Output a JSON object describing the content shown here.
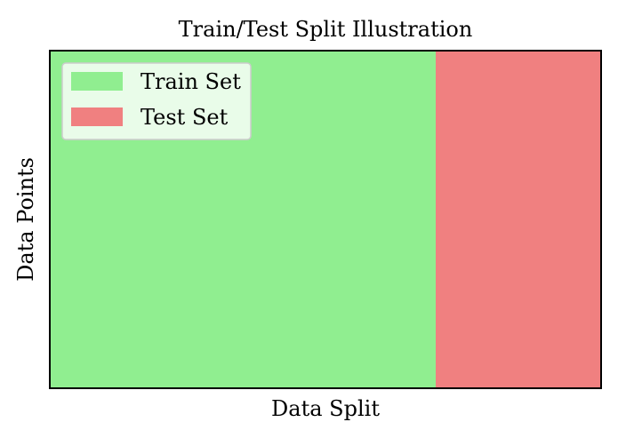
{
  "chart_data": {
    "type": "bar",
    "orientation": "horizontal-stacked",
    "title": "Train/Test Split Illustration",
    "xlabel": "Data Split",
    "ylabel": "Data Points",
    "xlim": [
      0,
      1
    ],
    "ticks_visible": false,
    "grid": false,
    "legend_position": "top-left",
    "series": [
      {
        "name": "Train Set",
        "start": 0,
        "value": 0.7,
        "color": "#90EE90"
      },
      {
        "name": "Test Set",
        "start": 0.7,
        "value": 0.3,
        "color": "#F08080"
      }
    ]
  }
}
